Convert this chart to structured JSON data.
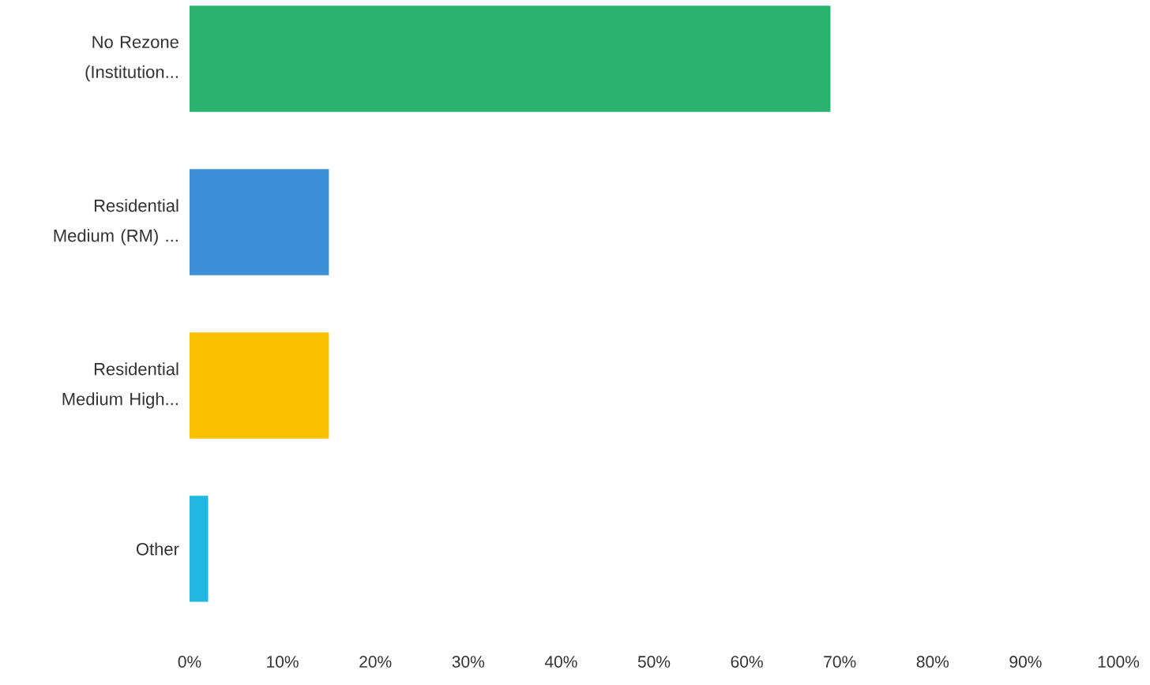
{
  "chart_data": {
    "type": "bar",
    "orientation": "horizontal",
    "categories": [
      "No Rezone (Institution...",
      "Residential Medium (RM) ...",
      "Residential Medium High...",
      "Other"
    ],
    "values": [
      69,
      15,
      15,
      2
    ],
    "colors": [
      "#2cb26f",
      "#3d8fd8",
      "#fbc000",
      "#22b7e0"
    ],
    "xlim": [
      0,
      100
    ],
    "xticks": [
      {
        "value": 0,
        "label": "0%"
      },
      {
        "value": 10,
        "label": "10%"
      },
      {
        "value": 20,
        "label": "20%"
      },
      {
        "value": 30,
        "label": "30%"
      },
      {
        "value": 40,
        "label": "40%"
      },
      {
        "value": 50,
        "label": "50%"
      },
      {
        "value": 60,
        "label": "60%"
      },
      {
        "value": 70,
        "label": "70%"
      },
      {
        "value": 80,
        "label": "80%"
      },
      {
        "value": 90,
        "label": "90%"
      },
      {
        "value": 100,
        "label": "100%"
      }
    ]
  }
}
